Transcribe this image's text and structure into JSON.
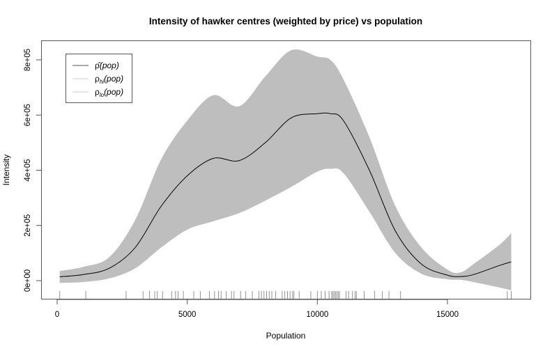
{
  "chart_data": {
    "type": "area",
    "title": "Intensity of hawker centres (weighted by price) vs population",
    "xlabel": "Population",
    "ylabel": "Intensity",
    "xlim": [
      -600,
      18200
    ],
    "ylim": [
      -65000,
      870000
    ],
    "xticks": [
      0,
      5000,
      10000,
      15000
    ],
    "xtick_labels": [
      "0",
      "5000",
      "10000",
      "15000"
    ],
    "yticks": [
      0,
      200000,
      400000,
      600000,
      800000
    ],
    "ytick_labels": [
      "0e+00",
      "2e+05",
      "4e+05",
      "6e+05",
      "8e+05"
    ],
    "grid": false,
    "legend_position": "top-left",
    "legend": [
      {
        "label_main": "ρ̂",
        "label_sub": "",
        "label_arg": "(pop)",
        "color": "#555555"
      },
      {
        "label_main": "ρ",
        "label_sub": "hi",
        "label_arg": "(pop)",
        "color": "#cccccc"
      },
      {
        "label_main": "ρ",
        "label_sub": "lo",
        "label_arg": "(pop)",
        "color": "#cccccc"
      }
    ],
    "x": [
      100,
      1000,
      2000,
      3000,
      4000,
      5000,
      6000,
      7000,
      8000,
      9000,
      10000,
      10500,
      11000,
      12000,
      13000,
      14000,
      15000,
      15500,
      16000,
      17000,
      17450
    ],
    "series": [
      {
        "name": "rho_hat(pop)",
        "values": [
          14000,
          22000,
          45000,
          120000,
          270000,
          380000,
          443000,
          435000,
          500000,
          590000,
          605000,
          605000,
          580000,
          400000,
          180000,
          60000,
          20000,
          15000,
          22000,
          55000,
          68000
        ]
      },
      {
        "name": "rho_hi(pop)",
        "values": [
          35000,
          50000,
          85000,
          220000,
          440000,
          580000,
          672000,
          632000,
          740000,
          835000,
          812000,
          800000,
          730000,
          520000,
          270000,
          120000,
          40000,
          30000,
          60000,
          130000,
          172000
        ]
      },
      {
        "name": "rho_lo(pop)",
        "values": [
          -8000,
          -5000,
          8000,
          45000,
          120000,
          185000,
          215000,
          245000,
          290000,
          340000,
          395000,
          405000,
          390000,
          250000,
          100000,
          25000,
          5000,
          3000,
          -5000,
          -25000,
          -35000
        ]
      }
    ],
    "rug": [
      100,
      1100,
      2650,
      3300,
      3550,
      3750,
      3850,
      4050,
      4400,
      4550,
      4650,
      4850,
      5250,
      5500,
      5850,
      6050,
      6200,
      6300,
      6500,
      6700,
      6800,
      7050,
      7250,
      7500,
      7750,
      7850,
      7950,
      8050,
      8150,
      8250,
      8400,
      8650,
      8750,
      8850,
      8950,
      9050,
      9100,
      9300,
      9750,
      10000,
      10150,
      10300,
      10450,
      10550,
      10600,
      10650,
      10700,
      10750,
      10800,
      10850,
      11100,
      11200,
      11350,
      11450,
      11500,
      11800,
      12200,
      12500,
      12750,
      13200,
      17300,
      17450
    ],
    "colors": {
      "band": "#bebebe",
      "line": "#000000",
      "rug": "#777777",
      "axis": "#555555"
    }
  }
}
